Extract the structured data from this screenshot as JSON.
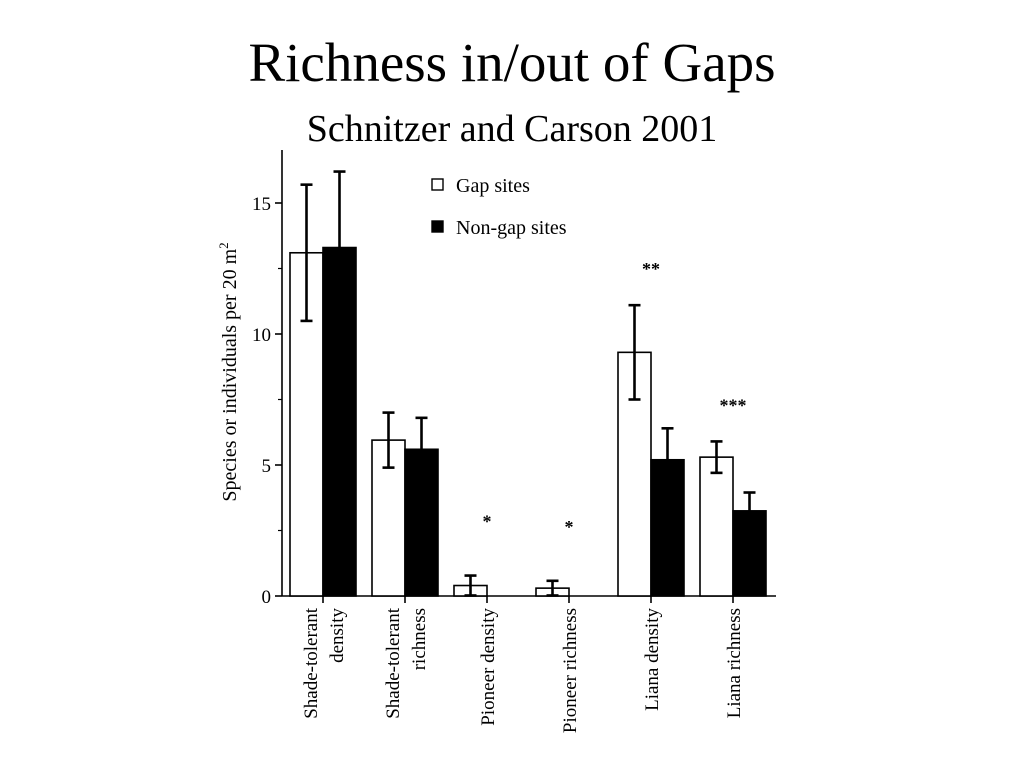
{
  "slide": {
    "title": "Richness in/out of Gaps",
    "subtitle": "Schnitzer and Carson 2001"
  },
  "chart_data": {
    "type": "bar",
    "ylabel": "Species or individuals per 20 m",
    "ylabel_superscript": "2",
    "ylim": [
      0,
      16.5
    ],
    "yticks": [
      0,
      5,
      10,
      15
    ],
    "grid": false,
    "legend_position": "top-center",
    "categories": [
      [
        "Shade-tolerant",
        "density"
      ],
      [
        "Shade-tolerant",
        "richness"
      ],
      [
        "Pioneer density"
      ],
      [
        "Pioneer richness"
      ],
      [
        "Liana density"
      ],
      [
        "Liana richness"
      ]
    ],
    "series": [
      {
        "name": "Gap sites",
        "fill": "#ffffff",
        "values": [
          13.1,
          5.95,
          0.4,
          0.3,
          9.3,
          5.3
        ],
        "errors": [
          2.6,
          1.05,
          0.38,
          0.28,
          1.8,
          0.6
        ]
      },
      {
        "name": "Non-gap sites",
        "fill": "#000000",
        "values": [
          13.3,
          5.6,
          0,
          0,
          5.2,
          3.25
        ],
        "errors": [
          2.9,
          1.2,
          0,
          0,
          1.2,
          0.7
        ]
      }
    ],
    "annotations": [
      "",
      "",
      "*",
      "*",
      "**",
      "***"
    ]
  }
}
